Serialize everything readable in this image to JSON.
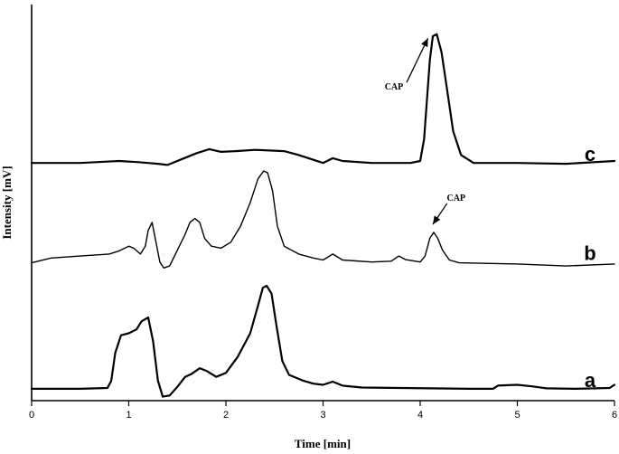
{
  "chart_data": {
    "type": "line",
    "xlabel": "Time [min]",
    "ylabel": "Intensity [mV]",
    "xlim": [
      0,
      6
    ],
    "x_ticks": [
      0,
      1,
      2,
      3,
      4,
      5,
      6
    ],
    "x_tick_labels": [
      "0",
      "1",
      "2",
      "3",
      "4",
      "5",
      "6"
    ],
    "ylim": [
      0,
      100
    ],
    "grid": false,
    "series": [
      {
        "name": "a",
        "baseline": 3,
        "points": [
          [
            0,
            3
          ],
          [
            0.5,
            3
          ],
          [
            0.78,
            3.2
          ],
          [
            0.82,
            5
          ],
          [
            0.86,
            12
          ],
          [
            0.92,
            16.5
          ],
          [
            1.0,
            17
          ],
          [
            1.08,
            18
          ],
          [
            1.13,
            20
          ],
          [
            1.2,
            21
          ],
          [
            1.25,
            15
          ],
          [
            1.3,
            5
          ],
          [
            1.35,
            1
          ],
          [
            1.42,
            1.3
          ],
          [
            1.5,
            3.5
          ],
          [
            1.58,
            6
          ],
          [
            1.65,
            6.8
          ],
          [
            1.73,
            8.2
          ],
          [
            1.8,
            7.5
          ],
          [
            1.9,
            6
          ],
          [
            2.0,
            7
          ],
          [
            2.12,
            11
          ],
          [
            2.25,
            17
          ],
          [
            2.33,
            24
          ],
          [
            2.38,
            28.5
          ],
          [
            2.42,
            29
          ],
          [
            2.47,
            27
          ],
          [
            2.52,
            19
          ],
          [
            2.58,
            10
          ],
          [
            2.65,
            6.5
          ],
          [
            2.8,
            5
          ],
          [
            2.9,
            4.3
          ],
          [
            3.0,
            4
          ],
          [
            3.1,
            4.8
          ],
          [
            3.2,
            3.8
          ],
          [
            3.4,
            3.3
          ],
          [
            3.8,
            3.2
          ],
          [
            4.5,
            3
          ],
          [
            4.75,
            3
          ],
          [
            4.8,
            3.8
          ],
          [
            4.9,
            3.9
          ],
          [
            5.0,
            4
          ],
          [
            5.15,
            3.6
          ],
          [
            5.3,
            3.1
          ],
          [
            5.6,
            3
          ],
          [
            5.95,
            3.2
          ],
          [
            6,
            4
          ]
        ]
      },
      {
        "name": "b",
        "baseline": 35,
        "points": [
          [
            0,
            34.8
          ],
          [
            0.2,
            36
          ],
          [
            0.5,
            36.5
          ],
          [
            0.8,
            37
          ],
          [
            0.9,
            37.8
          ],
          [
            1.0,
            39
          ],
          [
            1.05,
            38.5
          ],
          [
            1.12,
            37
          ],
          [
            1.17,
            39
          ],
          [
            1.2,
            43
          ],
          [
            1.24,
            45
          ],
          [
            1.28,
            40
          ],
          [
            1.32,
            35
          ],
          [
            1.36,
            33.5
          ],
          [
            1.42,
            34
          ],
          [
            1.5,
            38
          ],
          [
            1.58,
            42
          ],
          [
            1.63,
            45
          ],
          [
            1.68,
            46
          ],
          [
            1.73,
            45
          ],
          [
            1.78,
            41
          ],
          [
            1.85,
            39
          ],
          [
            1.95,
            38.5
          ],
          [
            2.05,
            40
          ],
          [
            2.15,
            44
          ],
          [
            2.25,
            50
          ],
          [
            2.33,
            56
          ],
          [
            2.39,
            58
          ],
          [
            2.43,
            57.5
          ],
          [
            2.48,
            53
          ],
          [
            2.53,
            44
          ],
          [
            2.6,
            39
          ],
          [
            2.75,
            37
          ],
          [
            2.9,
            36
          ],
          [
            3.0,
            35.5
          ],
          [
            3.1,
            37
          ],
          [
            3.2,
            35.5
          ],
          [
            3.5,
            35
          ],
          [
            3.7,
            35.2
          ],
          [
            3.78,
            36.5
          ],
          [
            3.85,
            35.6
          ],
          [
            4.0,
            35
          ],
          [
            4.05,
            36.5
          ],
          [
            4.1,
            41
          ],
          [
            4.14,
            42.5
          ],
          [
            4.18,
            41
          ],
          [
            4.23,
            38
          ],
          [
            4.3,
            35.5
          ],
          [
            4.4,
            34.8
          ],
          [
            5.0,
            34.5
          ],
          [
            5.5,
            34
          ],
          [
            6,
            34.5
          ]
        ]
      },
      {
        "name": "c",
        "baseline": 60,
        "points": [
          [
            0,
            60
          ],
          [
            0.5,
            60
          ],
          [
            0.9,
            60.5
          ],
          [
            1.1,
            60.2
          ],
          [
            1.3,
            59.8
          ],
          [
            1.4,
            59.5
          ],
          [
            1.55,
            61
          ],
          [
            1.7,
            62.5
          ],
          [
            1.83,
            63.5
          ],
          [
            1.95,
            62.8
          ],
          [
            2.1,
            63
          ],
          [
            2.3,
            63.3
          ],
          [
            2.6,
            63
          ],
          [
            2.75,
            62
          ],
          [
            2.9,
            60.8
          ],
          [
            3.0,
            60
          ],
          [
            3.1,
            61.2
          ],
          [
            3.2,
            60.5
          ],
          [
            3.5,
            60
          ],
          [
            3.9,
            60
          ],
          [
            4.0,
            60.5
          ],
          [
            4.04,
            66
          ],
          [
            4.07,
            76
          ],
          [
            4.1,
            86
          ],
          [
            4.13,
            92
          ],
          [
            4.17,
            92.5
          ],
          [
            4.22,
            88
          ],
          [
            4.28,
            78
          ],
          [
            4.34,
            68
          ],
          [
            4.42,
            62
          ],
          [
            4.55,
            60
          ],
          [
            5.0,
            60
          ],
          [
            5.5,
            59.8
          ],
          [
            6,
            60.5
          ]
        ]
      }
    ],
    "annotations": [
      {
        "text": "CAP",
        "x": 3.73,
        "y": 78.5,
        "arrow_to": [
          4.08,
          91.5
        ]
      },
      {
        "text": "CAP",
        "x": 4.37,
        "y": 50.5,
        "arrow_to": [
          4.13,
          44.5
        ]
      }
    ]
  }
}
